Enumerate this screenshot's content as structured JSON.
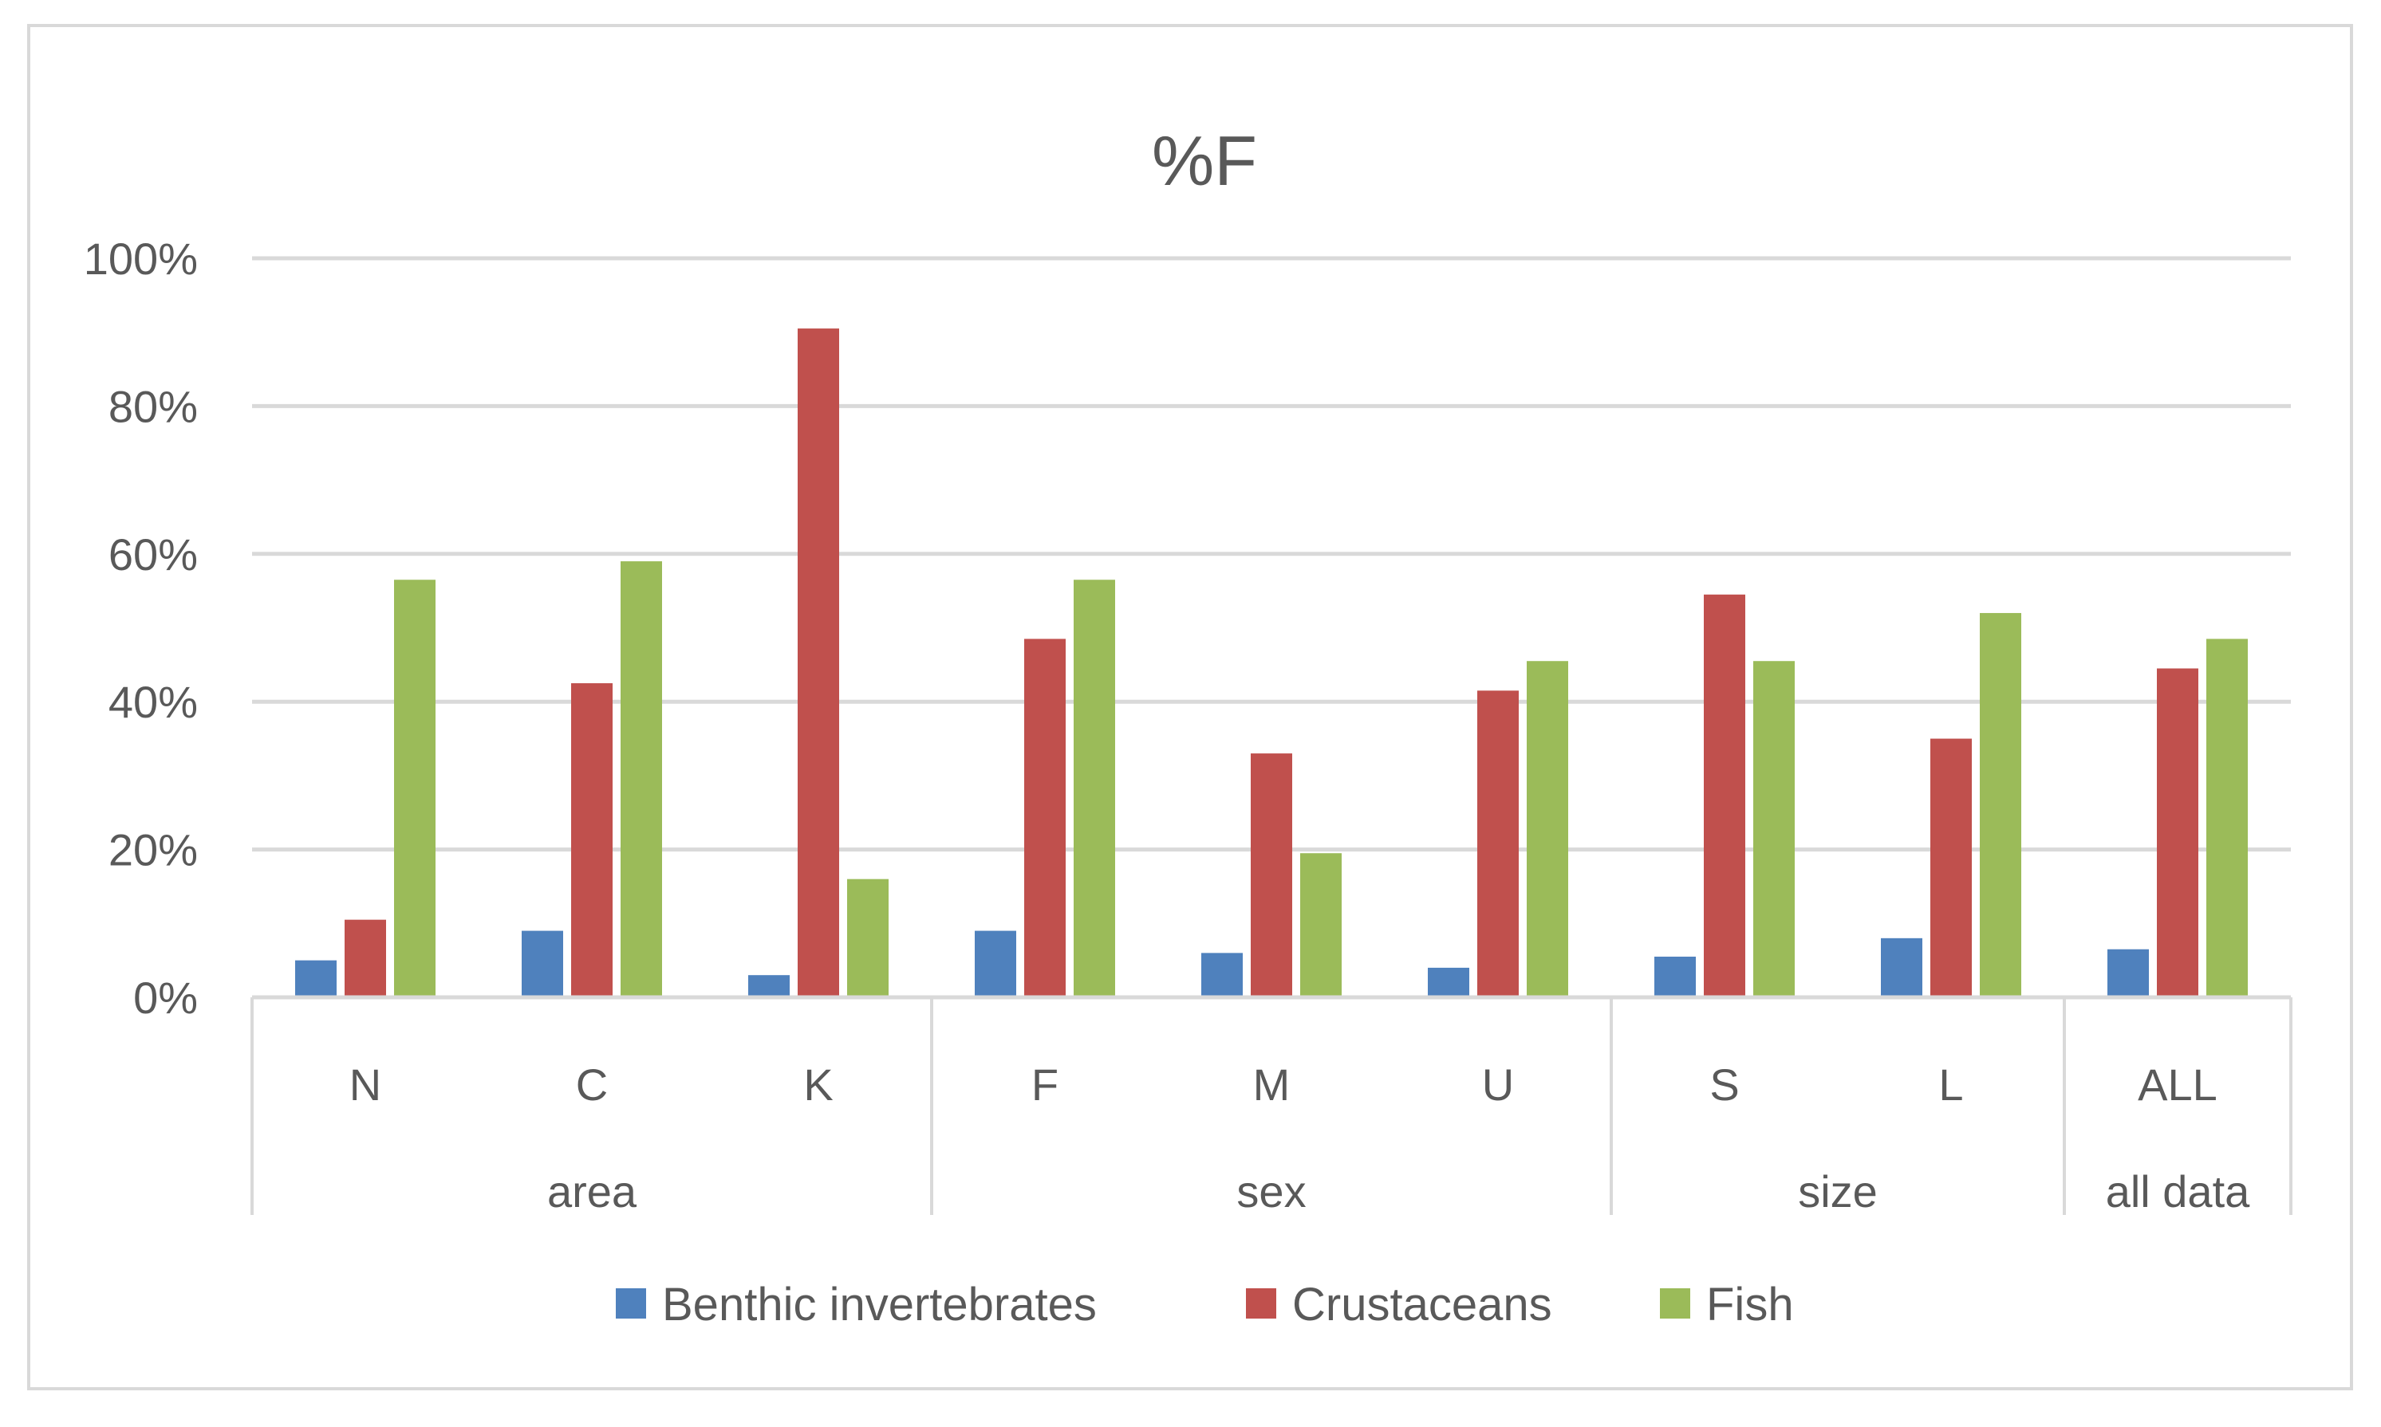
{
  "chart_data": {
    "type": "bar",
    "title": "%F",
    "xlabel": "",
    "ylabel": "",
    "ylim": [
      0,
      1
    ],
    "y_ticks": [
      {
        "value": 0,
        "label": "0%"
      },
      {
        "value": 0.2,
        "label": "20%"
      },
      {
        "value": 0.4,
        "label": "40%"
      },
      {
        "value": 0.6,
        "label": "60%"
      },
      {
        "value": 0.8,
        "label": "80%"
      },
      {
        "value": 1.0,
        "label": "100%"
      }
    ],
    "grid": true,
    "legend_position": "bottom",
    "categories": [
      "N",
      "C",
      "K",
      "F",
      "M",
      "U",
      "S",
      "L",
      "ALL"
    ],
    "groups": [
      {
        "label": "area",
        "start": 0,
        "end": 2
      },
      {
        "label": "sex",
        "start": 3,
        "end": 5
      },
      {
        "label": "size",
        "start": 6,
        "end": 7
      },
      {
        "label": "all data",
        "start": 8,
        "end": 8
      }
    ],
    "series": [
      {
        "name": "Benthic invertebrates",
        "color": "#4f81bd",
        "values": [
          0.05,
          0.09,
          0.03,
          0.09,
          0.06,
          0.04,
          0.055,
          0.08,
          0.065
        ]
      },
      {
        "name": "Crustaceans",
        "color": "#c0504d",
        "values": [
          0.105,
          0.425,
          0.905,
          0.485,
          0.33,
          0.415,
          0.545,
          0.35,
          0.445
        ]
      },
      {
        "name": "Fish",
        "color": "#9bbb59",
        "values": [
          0.565,
          0.59,
          0.16,
          0.565,
          0.195,
          0.455,
          0.455,
          0.52,
          0.485
        ]
      }
    ]
  },
  "colors": {
    "gridline": "#d9d9d9",
    "axis": "#d9d9d9",
    "text": "#595959"
  }
}
